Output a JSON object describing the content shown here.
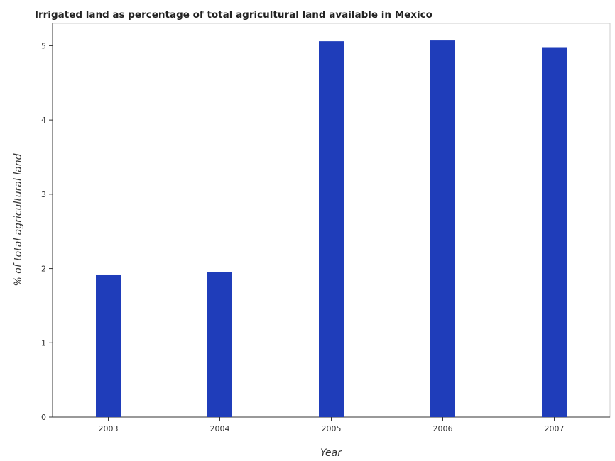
{
  "chart_data": {
    "type": "bar",
    "title": "Irrigated land as percentage of total agricultural land available in Mexico",
    "xlabel": "Year",
    "ylabel": "% of total agricultural land",
    "categories": [
      "2003",
      "2004",
      "2005",
      "2006",
      "2007"
    ],
    "values": [
      1.91,
      1.95,
      5.06,
      5.07,
      4.98
    ],
    "ylim": [
      0,
      5.3
    ],
    "yticks": [
      0,
      1,
      2,
      3,
      4,
      5
    ],
    "grid": false,
    "bar_color": "#1f3dba"
  }
}
